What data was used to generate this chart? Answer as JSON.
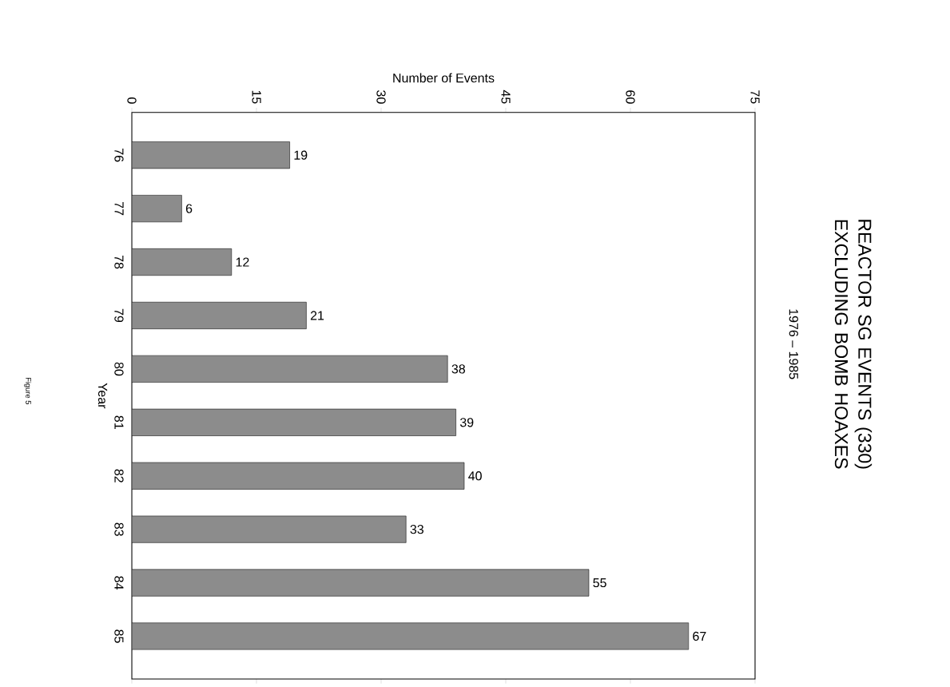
{
  "chart_data": {
    "type": "bar",
    "orientation": "horizontal",
    "title": "REACTOR SG EVENTS (330) EXCLUDING BOMB HOAXES",
    "subtitle": "1976 – 1985",
    "xlabel": "Number of Events",
    "ylabel": "Year",
    "categories": [
      "76",
      "77",
      "78",
      "79",
      "80",
      "81",
      "82",
      "83",
      "84",
      "85"
    ],
    "values": [
      19,
      6,
      12,
      21,
      38,
      39,
      40,
      33,
      55,
      67
    ],
    "color": "#8c8c8c",
    "xlim": [
      0,
      75
    ],
    "xticks": [
      0,
      15,
      30,
      45,
      60,
      75
    ],
    "data_labels": true,
    "annotations": [
      "Figure 5"
    ]
  }
}
